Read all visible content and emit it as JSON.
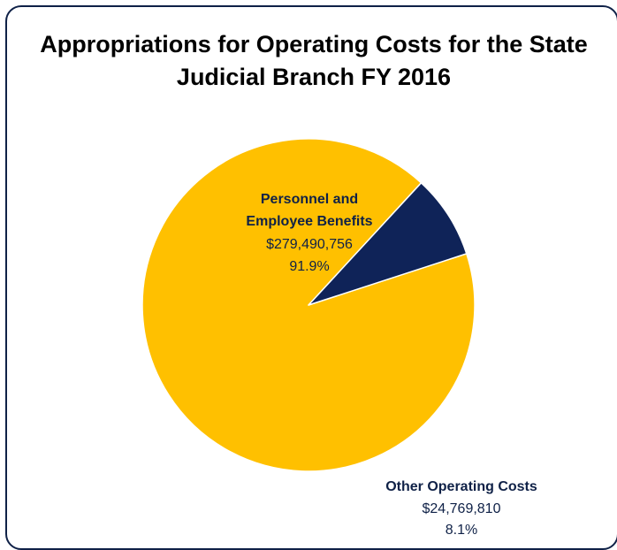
{
  "title_lines": [
    "Appropriations for Operating Costs for the State",
    "Judicial Branch FY 2016"
  ],
  "chart_data": {
    "type": "pie",
    "title": "Appropriations for Operating Costs for the State Judicial Branch FY 2016",
    "slices": [
      {
        "name_lines": [
          "Personnel and",
          "Employee Benefits"
        ],
        "amount": "$279,490,756",
        "percent_label": "91.9%",
        "value": 279490756,
        "percent": 91.9,
        "color": "#ffc000"
      },
      {
        "name_lines": [
          "Other Operating Costs"
        ],
        "amount": "$24,769,810",
        "percent_label": "8.1%",
        "value": 24769810,
        "percent": 8.1,
        "color": "#0f2358"
      }
    ]
  },
  "colors": {
    "border": "#0f2147",
    "label_text": "#0f2147"
  }
}
